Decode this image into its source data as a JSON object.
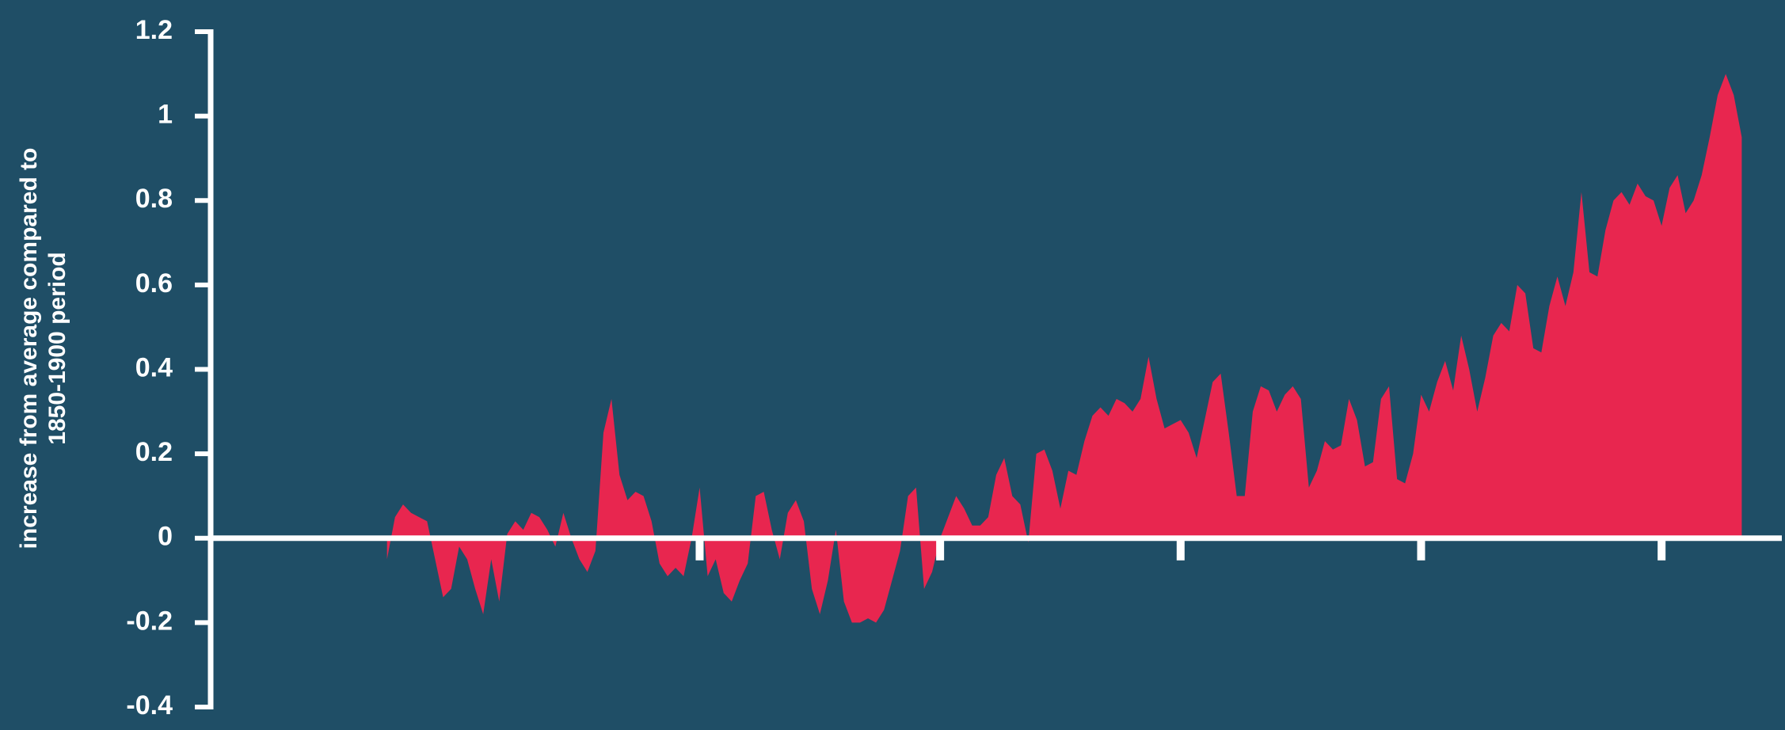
{
  "chart_data": {
    "type": "area",
    "ylabel": [
      "increase from average compared to",
      "1850-1900 period"
    ],
    "color": "#e8264f",
    "background": "#1f4e66",
    "axis_color": "#ffffff",
    "ylim": [
      -0.4,
      1.2
    ],
    "yticks": [
      -0.4,
      -0.2,
      0,
      0.2,
      0.4,
      0.6,
      0.8,
      1,
      1.2
    ],
    "xlim": [
      1829,
      2025
    ],
    "xticks": [
      1890,
      1920,
      1950,
      1980,
      2010
    ],
    "x": [
      1851,
      1852,
      1853,
      1854,
      1855,
      1856,
      1857,
      1858,
      1859,
      1860,
      1861,
      1862,
      1863,
      1864,
      1865,
      1866,
      1867,
      1868,
      1869,
      1870,
      1871,
      1872,
      1873,
      1874,
      1875,
      1876,
      1877,
      1878,
      1879,
      1880,
      1881,
      1882,
      1883,
      1884,
      1885,
      1886,
      1887,
      1888,
      1889,
      1890,
      1891,
      1892,
      1893,
      1894,
      1895,
      1896,
      1897,
      1898,
      1899,
      1900,
      1901,
      1902,
      1903,
      1904,
      1905,
      1906,
      1907,
      1908,
      1909,
      1910,
      1911,
      1912,
      1913,
      1914,
      1915,
      1916,
      1917,
      1918,
      1919,
      1920,
      1921,
      1922,
      1923,
      1924,
      1925,
      1926,
      1927,
      1928,
      1929,
      1930,
      1931,
      1932,
      1933,
      1934,
      1935,
      1936,
      1937,
      1938,
      1939,
      1940,
      1941,
      1942,
      1943,
      1944,
      1945,
      1946,
      1947,
      1948,
      1949,
      1950,
      1951,
      1952,
      1953,
      1954,
      1955,
      1956,
      1957,
      1958,
      1959,
      1960,
      1961,
      1962,
      1963,
      1964,
      1965,
      1966,
      1967,
      1968,
      1969,
      1970,
      1971,
      1972,
      1973,
      1974,
      1975,
      1976,
      1977,
      1978,
      1979,
      1980,
      1981,
      1982,
      1983,
      1984,
      1985,
      1986,
      1987,
      1988,
      1989,
      1990,
      1991,
      1992,
      1993,
      1994,
      1995,
      1996,
      1997,
      1998,
      1999,
      2000,
      2001,
      2002,
      2003,
      2004,
      2005,
      2006,
      2007,
      2008,
      2009,
      2010,
      2011,
      2012,
      2013,
      2014,
      2015,
      2016,
      2017,
      2018,
      2019,
      2020
    ],
    "values": [
      -0.05,
      0.05,
      0.08,
      0.06,
      0.05,
      0.04,
      -0.05,
      -0.14,
      -0.12,
      -0.02,
      -0.05,
      -0.12,
      -0.18,
      -0.05,
      -0.15,
      0.01,
      0.04,
      0.02,
      0.06,
      0.05,
      0.02,
      -0.02,
      0.06,
      0.0,
      -0.05,
      -0.08,
      -0.03,
      0.25,
      0.33,
      0.15,
      0.09,
      0.11,
      0.1,
      0.04,
      -0.06,
      -0.09,
      -0.07,
      -0.09,
      0.0,
      0.12,
      -0.09,
      -0.05,
      -0.13,
      -0.15,
      -0.1,
      -0.06,
      0.1,
      0.11,
      0.02,
      -0.05,
      0.06,
      0.09,
      0.04,
      -0.12,
      -0.18,
      -0.1,
      0.02,
      -0.15,
      -0.2,
      -0.2,
      -0.19,
      -0.2,
      -0.17,
      -0.1,
      -0.03,
      0.1,
      0.12,
      -0.12,
      -0.08,
      0.0,
      0.05,
      0.1,
      0.07,
      0.03,
      0.03,
      0.05,
      0.15,
      0.19,
      0.1,
      0.08,
      -0.01,
      0.2,
      0.21,
      0.16,
      0.07,
      0.16,
      0.15,
      0.23,
      0.29,
      0.31,
      0.29,
      0.33,
      0.32,
      0.3,
      0.33,
      0.43,
      0.33,
      0.26,
      0.27,
      0.28,
      0.25,
      0.19,
      0.28,
      0.37,
      0.39,
      0.25,
      0.1,
      0.1,
      0.3,
      0.36,
      0.35,
      0.3,
      0.34,
      0.36,
      0.33,
      0.12,
      0.16,
      0.23,
      0.21,
      0.22,
      0.33,
      0.28,
      0.17,
      0.18,
      0.33,
      0.36,
      0.14,
      0.13,
      0.2,
      0.34,
      0.3,
      0.37,
      0.42,
      0.35,
      0.48,
      0.4,
      0.3,
      0.38,
      0.48,
      0.51,
      0.49,
      0.6,
      0.58,
      0.45,
      0.44,
      0.55,
      0.62,
      0.55,
      0.63,
      0.82,
      0.63,
      0.62,
      0.73,
      0.8,
      0.82,
      0.79,
      0.84,
      0.81,
      0.8,
      0.74,
      0.83,
      0.86,
      0.77,
      0.8,
      0.86,
      0.95,
      1.05,
      1.1,
      1.05,
      0.95
    ]
  }
}
